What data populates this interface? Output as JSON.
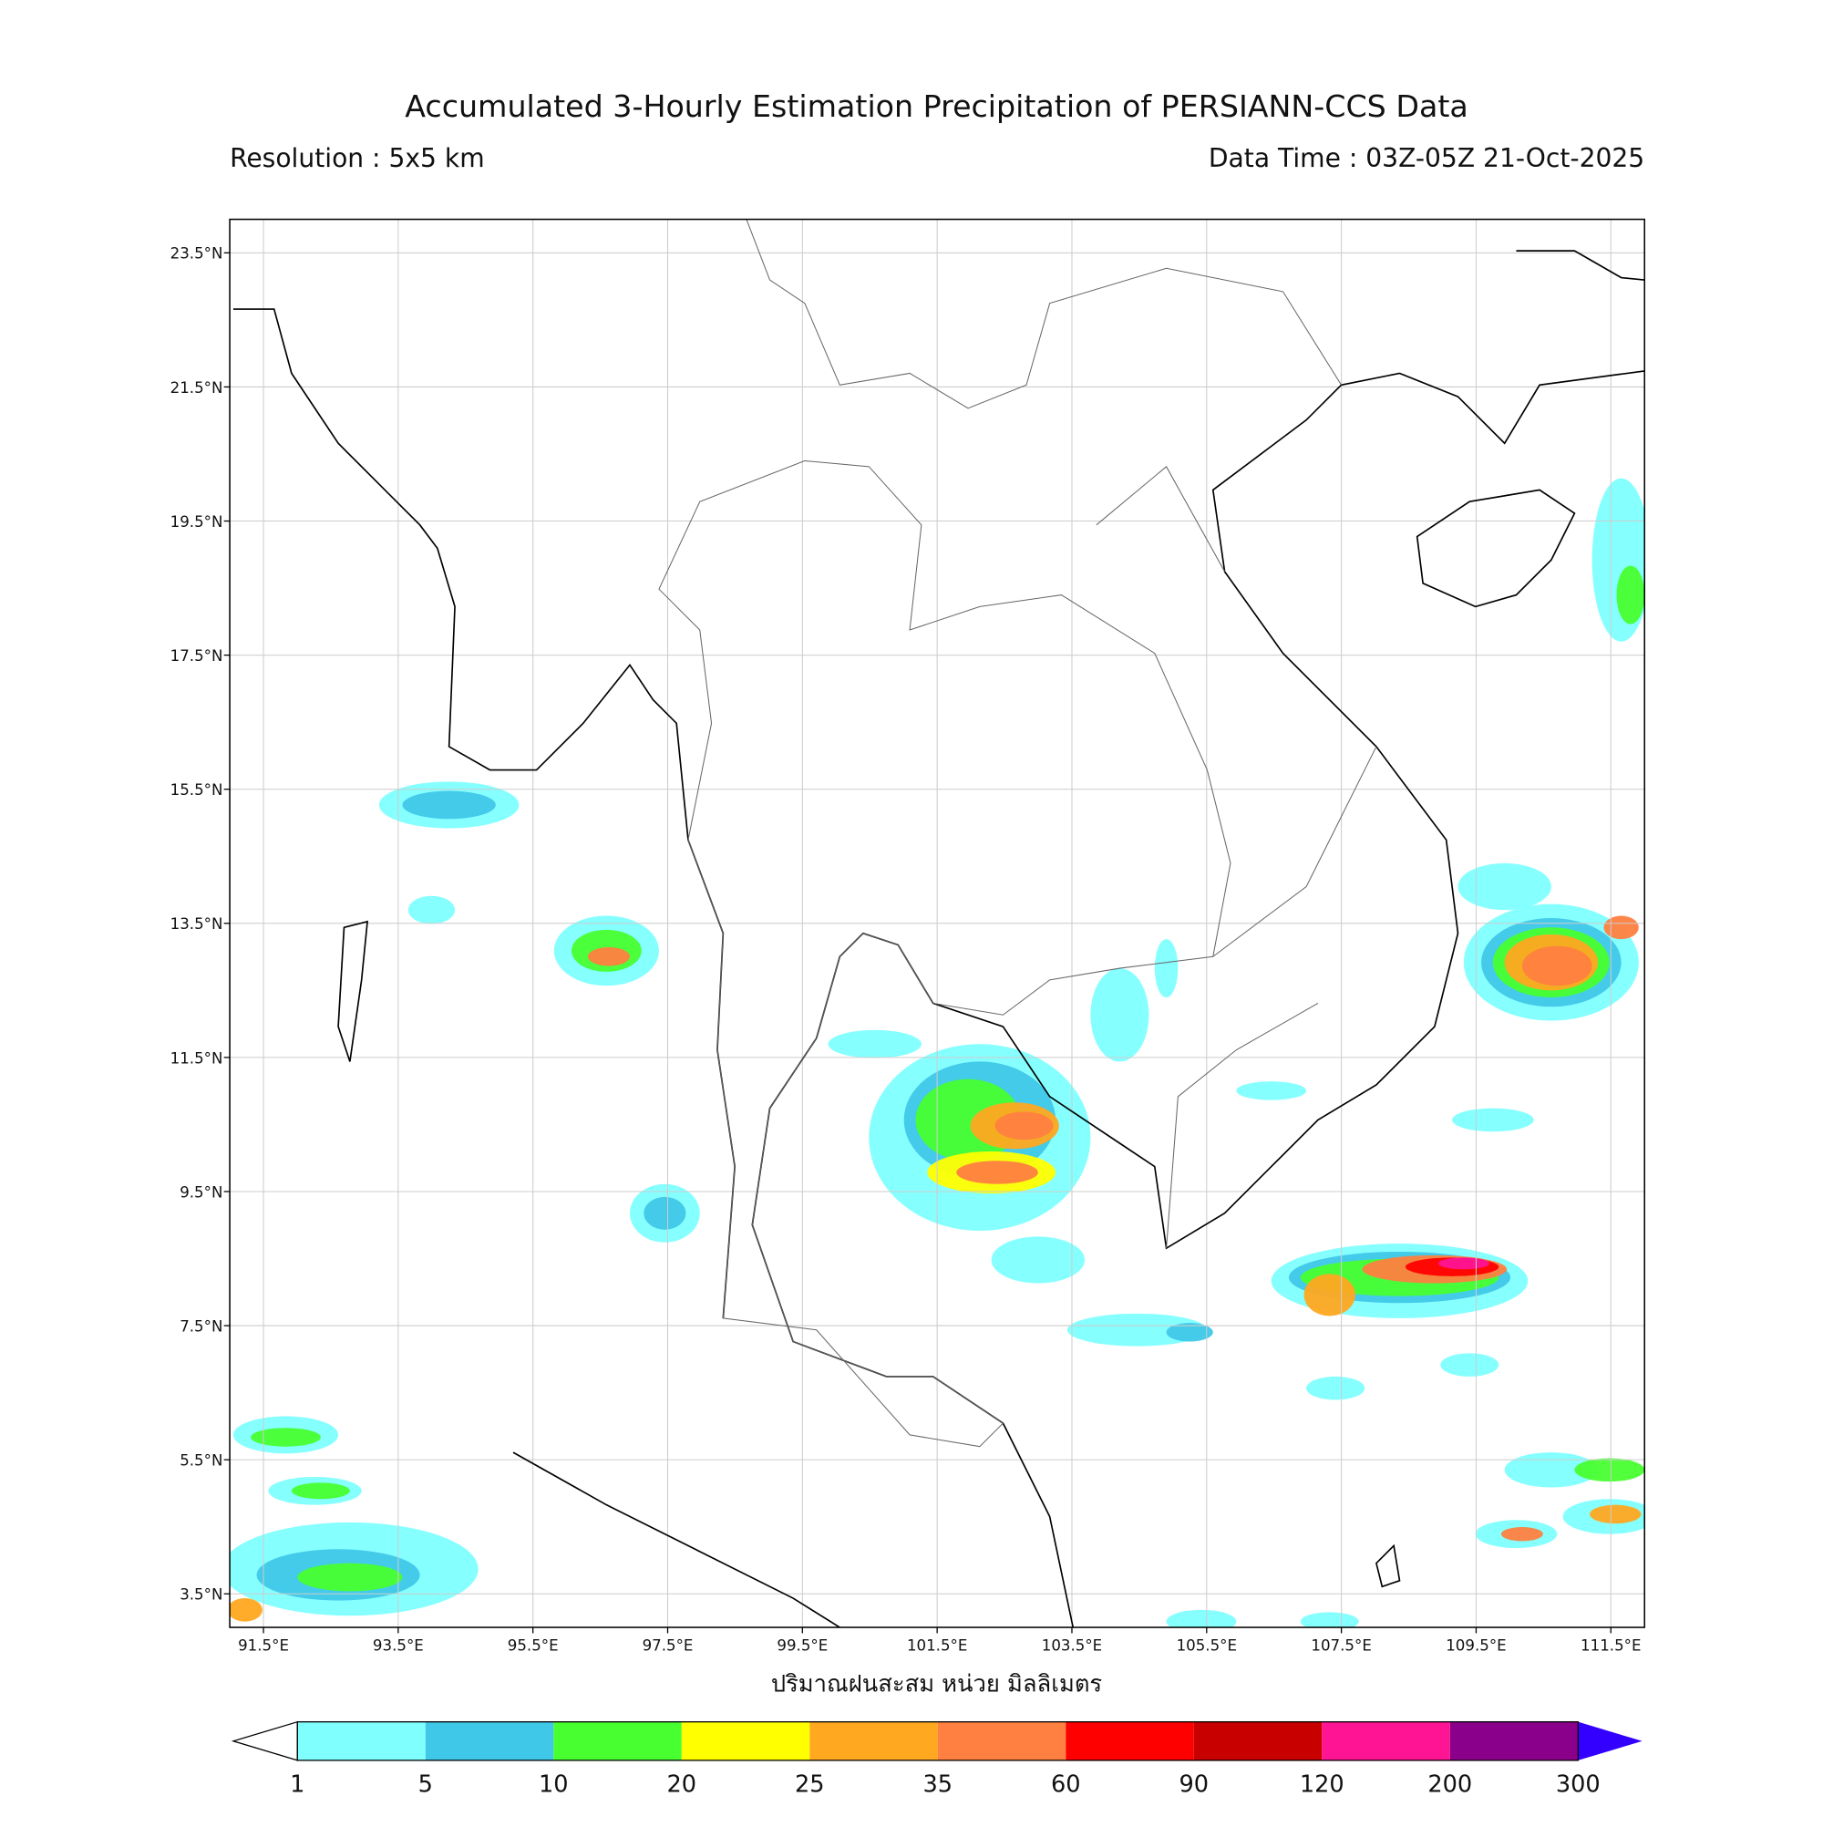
{
  "title": "Accumulated 3-Hourly Estimation Precipitation of PERSIANN-CCS Data",
  "resolution": "Resolution : 5x5 km",
  "data_time": "Data Time : 03Z-05Z 21-Oct-2025",
  "map": {
    "xlim": [
      91,
      112
    ],
    "ylim": [
      3,
      24
    ],
    "xticks": [
      {
        "value": 91.5,
        "label": "91.5°E"
      },
      {
        "value": 93.5,
        "label": "93.5°E"
      },
      {
        "value": 95.5,
        "label": "95.5°E"
      },
      {
        "value": 97.5,
        "label": "97.5°E"
      },
      {
        "value": 99.5,
        "label": "99.5°E"
      },
      {
        "value": 101.5,
        "label": "101.5°E"
      },
      {
        "value": 103.5,
        "label": "103.5°E"
      },
      {
        "value": 105.5,
        "label": "105.5°E"
      },
      {
        "value": 107.5,
        "label": "107.5°E"
      },
      {
        "value": 109.5,
        "label": "109.5°E"
      },
      {
        "value": 111.5,
        "label": "111.5°E"
      }
    ],
    "yticks": [
      {
        "value": 3.5,
        "label": "3.5°N"
      },
      {
        "value": 5.5,
        "label": "5.5°N"
      },
      {
        "value": 7.5,
        "label": "7.5°N"
      },
      {
        "value": 9.5,
        "label": "9.5°N"
      },
      {
        "value": 11.5,
        "label": "11.5°N"
      },
      {
        "value": 13.5,
        "label": "13.5°N"
      },
      {
        "value": 15.5,
        "label": "15.5°N"
      },
      {
        "value": 17.5,
        "label": "17.5°N"
      },
      {
        "value": 19.5,
        "label": "19.5°N"
      },
      {
        "value": 21.5,
        "label": "21.5°N"
      },
      {
        "value": 23.5,
        "label": "23.5°N"
      }
    ],
    "grid": true,
    "x_label": "ปริมาณฝนสะสม หน่วย มิลลิเมตร"
  },
  "colorbar": {
    "levels": [
      1,
      5,
      10,
      20,
      25,
      35,
      60,
      90,
      120,
      200,
      300
    ],
    "colors": [
      "#80ffff",
      "#40c8e8",
      "#48ff30",
      "#ffff00",
      "#ffa820",
      "#ff8040",
      "#ff0000",
      "#c80000",
      "#ff1493",
      "#8b008b"
    ],
    "under_color": "#ffffff",
    "over_color": "#3300ff"
  }
}
